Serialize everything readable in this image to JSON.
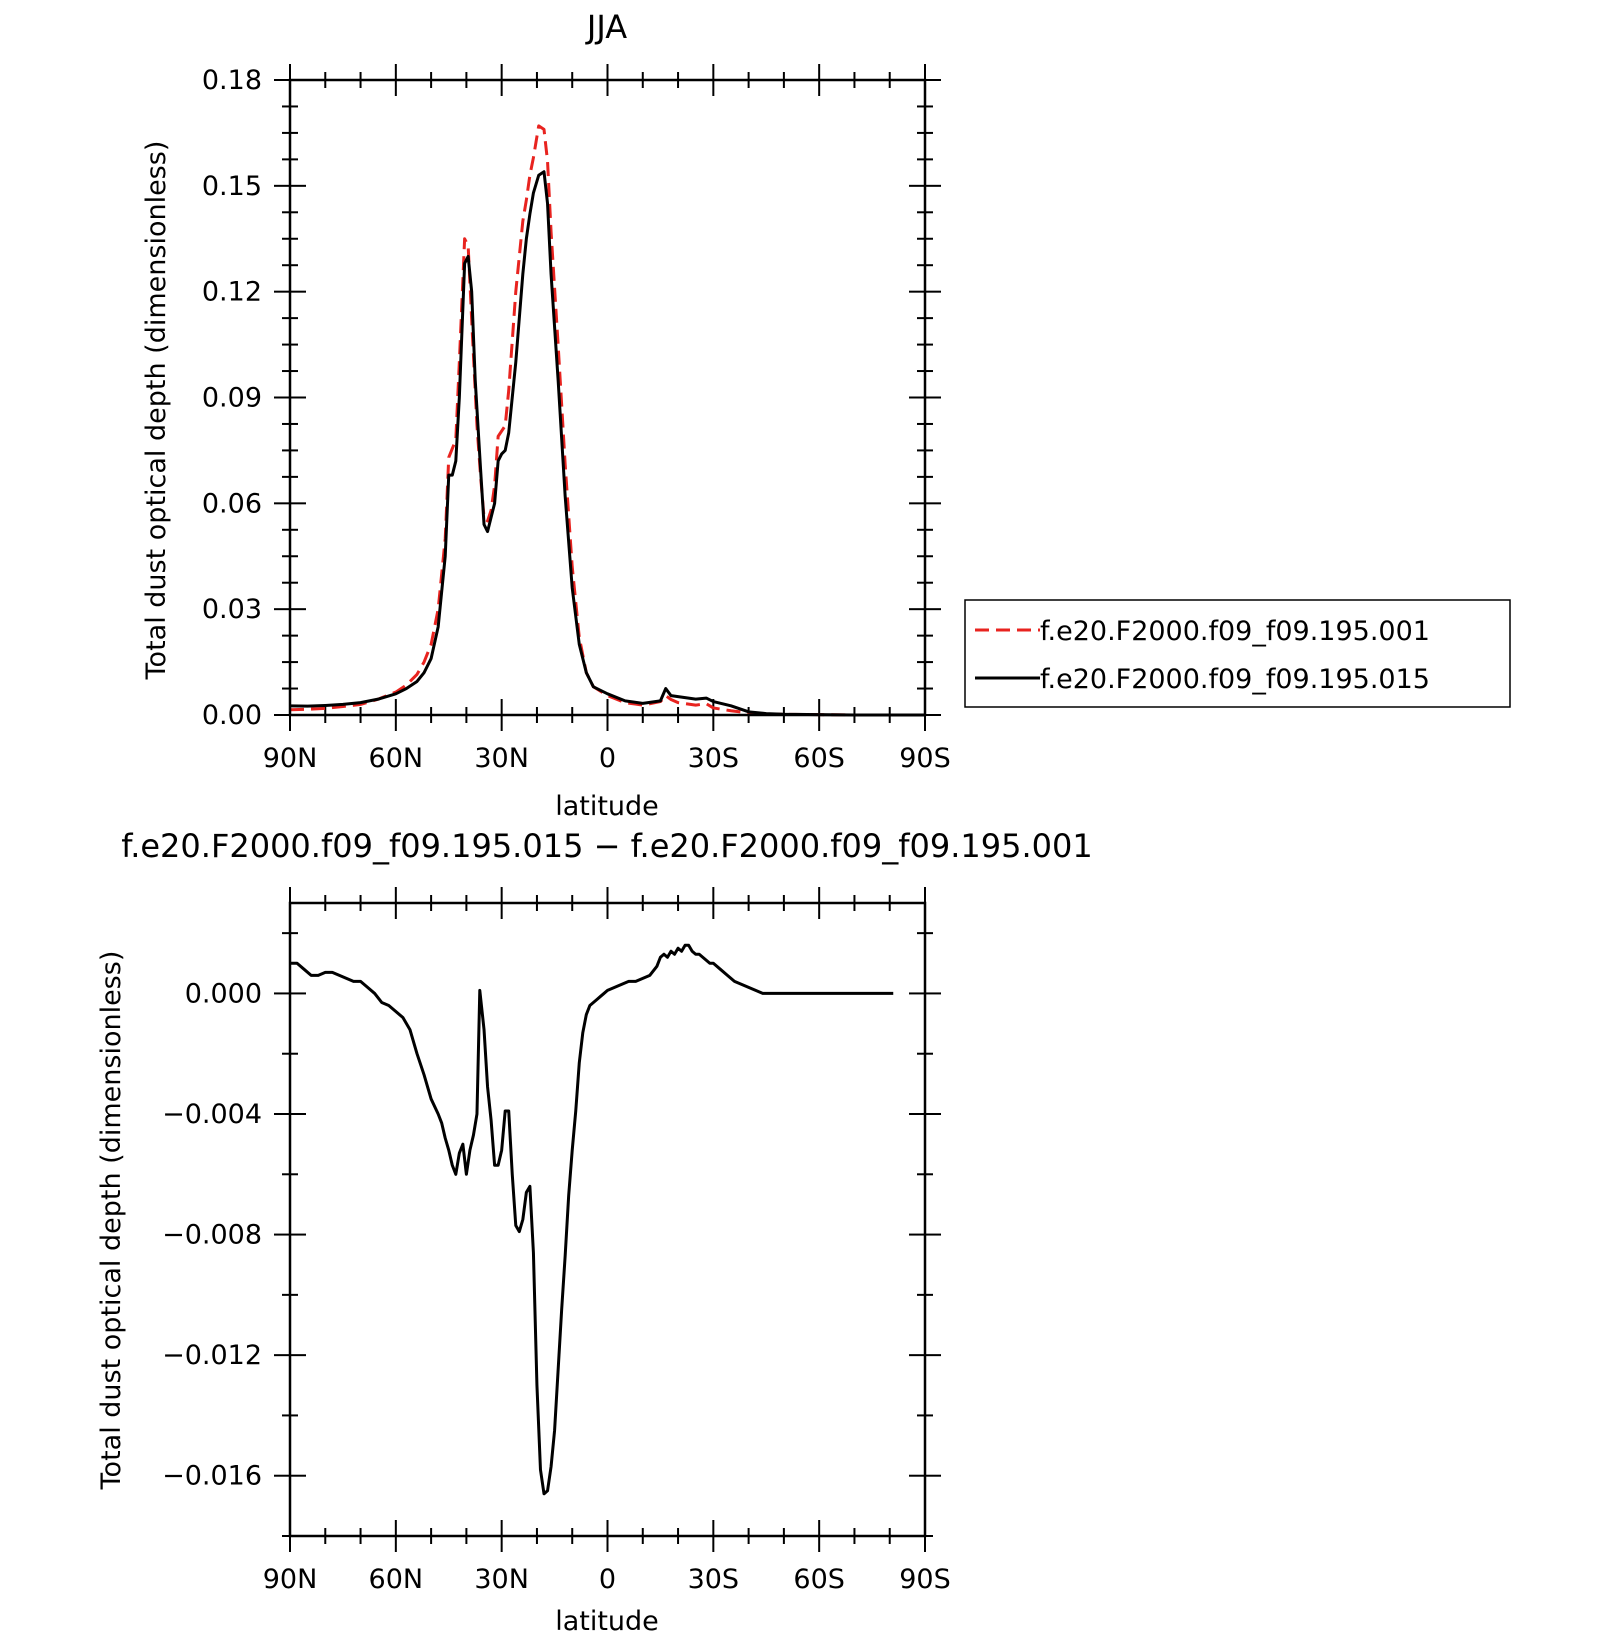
{
  "colors": {
    "series_001": "#e8231f",
    "series_015": "#000000"
  },
  "chart_data": [
    {
      "type": "line",
      "title": "JJA",
      "xlabel": "latitude",
      "ylabel": "Total dust optical depth (dimensionless)",
      "xlim": [
        90,
        -90
      ],
      "xtick_values": [
        90,
        60,
        30,
        0,
        -30,
        -60,
        -90
      ],
      "xtick_labels": [
        "90N",
        "60N",
        "30N",
        "0",
        "30S",
        "60S",
        "90S"
      ],
      "ylim": [
        0,
        0.18
      ],
      "ytick_values": [
        0,
        0.03,
        0.06,
        0.09,
        0.12,
        0.15,
        0.18
      ],
      "ytick_labels": [
        "0.00",
        "0.03",
        "0.06",
        "0.09",
        "0.12",
        "0.15",
        "0.18"
      ],
      "legend_position": "outside-right",
      "series": [
        {
          "name": "f.e20.F2000.f09_f09.195.001",
          "style": "dashed",
          "x": [
            90,
            85,
            80,
            75,
            70,
            65,
            60,
            57,
            54,
            52,
            50,
            48,
            46,
            45,
            43,
            42,
            40.5,
            39.5,
            38.5,
            37,
            36,
            35,
            34,
            33,
            32,
            31,
            29,
            28,
            26,
            24,
            23,
            22,
            21,
            19.5,
            18,
            17,
            16,
            14,
            12,
            10,
            8,
            6,
            4,
            0,
            -5,
            -10,
            -15,
            -16.5,
            -18,
            -20,
            -25,
            -28,
            -30,
            -35,
            -40,
            -45,
            -50,
            -60,
            -70,
            -80,
            -90
          ],
          "y": [
            0.0015,
            0.0016,
            0.0019,
            0.0024,
            0.003,
            0.0045,
            0.0065,
            0.0085,
            0.0115,
            0.015,
            0.02,
            0.03,
            0.05,
            0.073,
            0.078,
            0.1,
            0.135,
            0.133,
            0.112,
            0.082,
            0.068,
            0.056,
            0.055,
            0.058,
            0.065,
            0.079,
            0.082,
            0.092,
            0.12,
            0.14,
            0.146,
            0.153,
            0.158,
            0.167,
            0.166,
            0.157,
            0.137,
            0.105,
            0.071,
            0.042,
            0.022,
            0.012,
            0.008,
            0.0055,
            0.0035,
            0.0028,
            0.0038,
            0.0055,
            0.0044,
            0.0035,
            0.0028,
            0.0032,
            0.002,
            0.0012,
            0.0006,
            0.0003,
            0.0002,
            0.0001,
            0.0,
            0.0,
            0.0
          ]
        },
        {
          "name": "f.e20.F2000.f09_f09.195.015",
          "style": "solid",
          "x": [
            90,
            85,
            80,
            75,
            70,
            65,
            60,
            57,
            54,
            52,
            50,
            48,
            46,
            45,
            44,
            43,
            42,
            40.5,
            39.5,
            38.5,
            37.5,
            36,
            35,
            34,
            33,
            32,
            31,
            30,
            29,
            28,
            26,
            24,
            23,
            22,
            21,
            19.5,
            18,
            17,
            16,
            14,
            12,
            10,
            8,
            6,
            4,
            0,
            -5,
            -10,
            -15,
            -16.5,
            -18,
            -20,
            -25,
            -28,
            -30,
            -35,
            -40,
            -45,
            -50,
            -60,
            -70,
            -80,
            -90
          ],
          "y": [
            0.0026,
            0.0025,
            0.0027,
            0.003,
            0.0035,
            0.0045,
            0.006,
            0.0075,
            0.0095,
            0.012,
            0.016,
            0.025,
            0.045,
            0.068,
            0.068,
            0.072,
            0.09,
            0.128,
            0.13,
            0.12,
            0.095,
            0.07,
            0.054,
            0.052,
            0.056,
            0.06,
            0.072,
            0.074,
            0.075,
            0.08,
            0.1,
            0.125,
            0.135,
            0.142,
            0.148,
            0.153,
            0.154,
            0.145,
            0.125,
            0.095,
            0.062,
            0.036,
            0.02,
            0.012,
            0.008,
            0.006,
            0.004,
            0.0033,
            0.004,
            0.0075,
            0.0055,
            0.0052,
            0.0045,
            0.0048,
            0.0038,
            0.0026,
            0.0009,
            0.0004,
            0.0002,
            0.0001,
            0.0,
            0.0,
            0.0
          ]
        }
      ]
    },
    {
      "type": "line",
      "title": "f.e20.F2000.f09_f09.195.015 − f.e20.F2000.f09_f09.195.001",
      "xlabel": "latitude",
      "ylabel": "Total dust optical depth (dimensionless)",
      "xlim": [
        90,
        -90
      ],
      "xtick_values": [
        90,
        60,
        30,
        0,
        -30,
        -60,
        -90
      ],
      "xtick_labels": [
        "90N",
        "60N",
        "30N",
        "0",
        "30S",
        "60S",
        "90S"
      ],
      "ylim": [
        -0.018,
        0.003
      ],
      "ytick_values": [
        0.0,
        -0.004,
        -0.008,
        -0.012,
        -0.016
      ],
      "ytick_labels": [
        "0.000",
        "−0.004",
        "−0.008",
        "−0.012",
        "−0.016"
      ],
      "series": [
        {
          "name": "",
          "style": "solid",
          "x": [
            90,
            88,
            86,
            84,
            82,
            80,
            78,
            76,
            74,
            72,
            70,
            68,
            66,
            64,
            62,
            60,
            58,
            56,
            54,
            52,
            50,
            48,
            47,
            46,
            45,
            44,
            43,
            42,
            41,
            40,
            39,
            38,
            37,
            36.2,
            35,
            34,
            33,
            32,
            31,
            30,
            29,
            28,
            27,
            26,
            25,
            24,
            23,
            22,
            21,
            20,
            19,
            18,
            17,
            16,
            15,
            14,
            13,
            12,
            11,
            10,
            9,
            8,
            7,
            6,
            5,
            4,
            3,
            2,
            1,
            0,
            -2,
            -4,
            -6,
            -8,
            -10,
            -12,
            -14,
            -15,
            -16,
            -17,
            -18,
            -19,
            -20,
            -21,
            -22,
            -23,
            -24,
            -25,
            -26,
            -27,
            -28,
            -29,
            -30,
            -32,
            -34,
            -36,
            -38,
            -40,
            -42,
            -44,
            -46,
            -48,
            -50,
            -55,
            -60,
            -65,
            -70,
            -75,
            -80,
            -81
          ],
          "y": [
            0.001,
            0.001,
            0.0008,
            0.0006,
            0.0006,
            0.0007,
            0.0007,
            0.0006,
            0.0005,
            0.0004,
            0.0004,
            0.0002,
            0.0,
            -0.0003,
            -0.0004,
            -0.0006,
            -0.0008,
            -0.0012,
            -0.002,
            -0.0027,
            -0.0035,
            -0.004,
            -0.0043,
            -0.0048,
            -0.0052,
            -0.0057,
            -0.006,
            -0.0053,
            -0.005,
            -0.006,
            -0.0052,
            -0.0047,
            -0.004,
            0.0001,
            -0.0012,
            -0.0031,
            -0.0042,
            -0.0057,
            -0.0057,
            -0.0052,
            -0.0039,
            -0.0039,
            -0.006,
            -0.0077,
            -0.0079,
            -0.0075,
            -0.0066,
            -0.0064,
            -0.0086,
            -0.013,
            -0.0158,
            -0.0166,
            -0.0165,
            -0.0157,
            -0.0145,
            -0.0125,
            -0.0105,
            -0.0087,
            -0.0067,
            -0.0052,
            -0.0039,
            -0.0023,
            -0.0013,
            -0.0007,
            -0.0004,
            -0.0003,
            -0.0002,
            -0.0001,
            0.0,
            0.0001,
            0.0002,
            0.0003,
            0.0004,
            0.0004,
            0.0005,
            0.0006,
            0.0009,
            0.0012,
            0.0013,
            0.0012,
            0.0014,
            0.0013,
            0.0015,
            0.0014,
            0.0016,
            0.0016,
            0.0014,
            0.0013,
            0.0013,
            0.0012,
            0.0011,
            0.001,
            0.001,
            0.0008,
            0.0006,
            0.0004,
            0.0003,
            0.0002,
            0.0001,
            0.0,
            0.0,
            0.0,
            0.0,
            0.0,
            0.0,
            0.0,
            0.0,
            0.0,
            0.0,
            0.0
          ]
        }
      ]
    }
  ]
}
